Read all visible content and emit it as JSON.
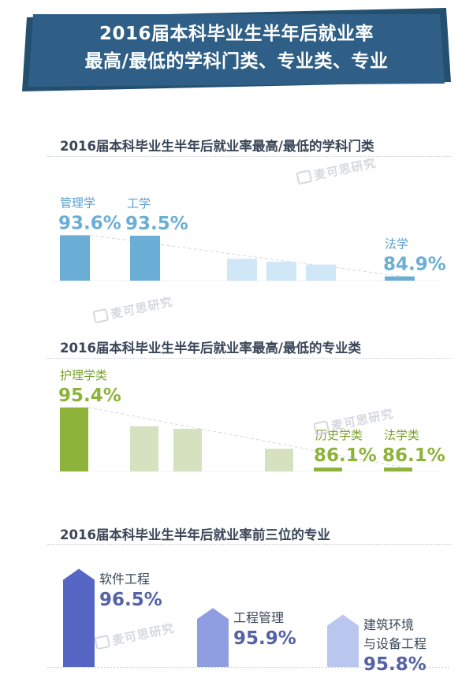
{
  "header": {
    "title_line1": "2016届本科毕业生半年后就业率",
    "title_line2": "最高/最低的学科门类、专业类、专业",
    "bg_color": "#2f5f86"
  },
  "watermark": "麦可思研究",
  "chart_data": [
    {
      "type": "bar",
      "title": "2016届本科毕业生半年后就业率最高/最低的学科门类",
      "categories": [
        "管理学",
        "工学",
        "",
        "",
        "",
        "法学"
      ],
      "values": [
        93.6,
        93.5,
        88.6,
        88.0,
        87.4,
        84.9
      ],
      "value_labels": [
        "93.6%",
        "93.5%",
        "",
        "",
        "",
        "84.9%"
      ],
      "highlight_color": "#6aaed6",
      "muted_color": "#cfe7f6"
    },
    {
      "type": "bar",
      "title": "2016届本科毕业生半年后就业率最高/最低的专业类",
      "categories": [
        "护理学类",
        "",
        "",
        "",
        "历史学类",
        "法学类"
      ],
      "values": [
        95.4,
        92.5,
        92.1,
        89.0,
        86.1,
        86.1
      ],
      "value_labels": [
        "95.4%",
        "",
        "",
        "",
        "86.1%",
        "86.1%"
      ],
      "highlight_color": "#8db33a",
      "muted_color": "#d6e1bf"
    },
    {
      "type": "bar",
      "title": "2016届本科毕业生半年后就业率前三位的专业",
      "categories": [
        "软件工程",
        "工程管理",
        "建筑环境与设备工程"
      ],
      "category_lines": [
        [
          "软件工程"
        ],
        [
          "工程管理"
        ],
        [
          "建筑环境",
          "与设备工程"
        ]
      ],
      "values": [
        96.5,
        95.9,
        95.8
      ],
      "value_labels": [
        "96.5%",
        "95.9%",
        "95.8%"
      ],
      "colors": [
        "#5566c4",
        "#8f9ee0",
        "#b9c7ef"
      ]
    }
  ]
}
